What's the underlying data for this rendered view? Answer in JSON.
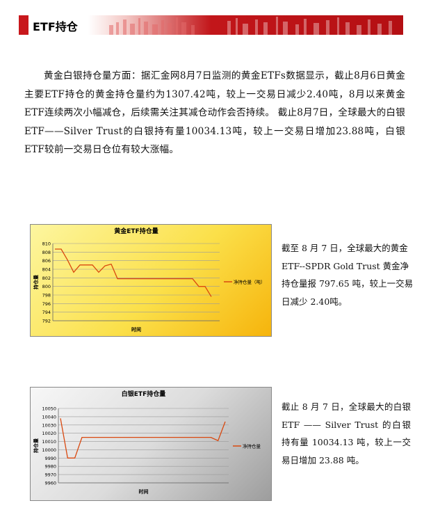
{
  "header": {
    "title": "ETF持仓"
  },
  "intro_paragraph": "黄金白银持仓量方面：据汇金网8月7日监测的黄金ETFs数据显示，截止8月6日黄金主要ETF持仓的黄金持仓量约为1307.42吨，较上一交易日减少2.40吨，8月以来黄金ETF连续两次小幅减仓，后续需关注其减仓动作会否持续。 截止8月7日，全球最大的白银ETF——Silver Trust的白银持有量10034.13吨，较上一交易日增加23.88吨，白银ETF较前一交易日仓位有较大涨幅。",
  "gold_note": "截至 8 月 7 日，全球最大的黄金 ETF--SPDR Gold Trust 黄金净持仓量报 797.65 吨，较上一交易日减少 2.40吨。",
  "silver_note": "截止 8 月 7 日，全球最大的白银 ETF —— Silver Trust 的白银持有量 10034.13 吨，较上一交易日增加 23.88 吨。",
  "colors": {
    "line": "#d9480f",
    "banner_red": "#c2161a"
  },
  "chart_data": [
    {
      "type": "line",
      "title": "黄金ETF持仓量",
      "xlabel": "时间",
      "ylabel": "持仓量",
      "ylim": [
        792,
        810
      ],
      "yticks": [
        "810",
        "808",
        "806",
        "804",
        "802",
        "800",
        "798",
        "796",
        "794",
        "792"
      ],
      "legend_position": "right",
      "series": [
        {
          "name": "净持仓量（吨）",
          "values": [
            808.7,
            808.7,
            806.2,
            803.3,
            805.0,
            805.0,
            805.0,
            803.3,
            804.8,
            805.2,
            801.8,
            801.8,
            801.8,
            801.8,
            801.8,
            801.8,
            801.8,
            801.8,
            801.8,
            801.8,
            801.8,
            801.8,
            801.8,
            800.0,
            800.0,
            797.6
          ]
        }
      ],
      "grid": true
    },
    {
      "type": "line",
      "title": "白银ETF持仓量",
      "xlabel": "时间",
      "ylabel": "持仓量",
      "ylim": [
        9960,
        10050
      ],
      "yticks": [
        "10050",
        "10040",
        "10030",
        "10020",
        "10010",
        "10000",
        "9990",
        "9980",
        "9970",
        "9960"
      ],
      "legend_position": "right",
      "series": [
        {
          "name": "净持仓量",
          "values": [
            10038,
            9990,
            9990,
            10015,
            10015,
            10015,
            10015,
            10015,
            10015,
            10015,
            10015,
            10015,
            10015,
            10015,
            10015,
            10015,
            10015,
            10015,
            10015,
            10015,
            10015,
            10015,
            10011,
            10034
          ]
        }
      ],
      "grid": true
    }
  ]
}
